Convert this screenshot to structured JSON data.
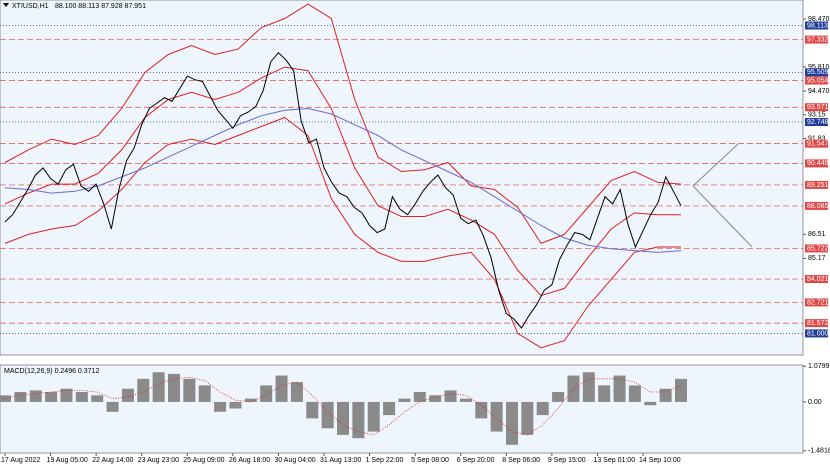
{
  "chart_data": {
    "type": "line",
    "title": "XTIUSD,H1",
    "quote": "88.100 88.113 87.928 87.951",
    "categories": [
      "17 Aug 2022",
      null,
      null,
      null,
      null,
      null,
      "19 Aug 05:00",
      null,
      null,
      null,
      null,
      null,
      "22 Aug 14:00",
      null,
      null,
      null,
      null,
      null,
      "23 Aug 23:00",
      null,
      null,
      null,
      null,
      null,
      "25 Aug 09:00",
      null,
      null,
      null,
      null,
      null,
      "26 Aug 18:00",
      null,
      null,
      null,
      null,
      null,
      "30 Aug 04:00",
      null,
      null,
      null,
      null,
      null,
      "31 Aug 13:00",
      null,
      null,
      null,
      null,
      null,
      "1 Sep 22:00",
      null,
      null,
      null,
      null,
      null,
      "5 Sep 08:00",
      null,
      null,
      null,
      null,
      null,
      "6 Sep 20:00",
      null,
      null,
      null,
      null,
      null,
      "8 Sep 06:00",
      null,
      null,
      null,
      null,
      null,
      "9 Sep 15:00",
      null,
      null,
      null,
      null,
      null,
      "13 Sep 01:00",
      null,
      null,
      null,
      null,
      null,
      "14 Sep 10:00",
      null,
      null,
      null,
      null,
      null
    ],
    "series": [
      {
        "name": "XTIUSD",
        "color": "#000000",
        "values": [
          87.2,
          87.6,
          88.3,
          89.0,
          89.8,
          90.2,
          89.6,
          89.3,
          90.1,
          90.4,
          89.2,
          88.9,
          89.3,
          88.2,
          86.8,
          89.0,
          90.6,
          91.3,
          92.6,
          93.5,
          93.8,
          94.1,
          93.9,
          94.6,
          95.3,
          95.1,
          95.0,
          94.2,
          93.4,
          92.9,
          92.4,
          93.1,
          93.3,
          93.6,
          94.5,
          96.1,
          96.6,
          96.2,
          95.6,
          92.8,
          91.6,
          91.8,
          90.2,
          89.4,
          88.8,
          88.6,
          88.0,
          87.7,
          87.0,
          86.6,
          86.8,
          88.6,
          87.9,
          87.6,
          88.2,
          88.9,
          89.4,
          89.8,
          89.1,
          88.7,
          87.4,
          87.1,
          87.3,
          86.4,
          85.2,
          83.4,
          82.1,
          81.8,
          81.3,
          82.0,
          82.6,
          83.4,
          83.7,
          85.1,
          85.9,
          86.6,
          86.5,
          86.2,
          87.4,
          88.6,
          88.2,
          89.0,
          87.1,
          85.8,
          86.7,
          87.6,
          88.3,
          89.7,
          88.9,
          88.1
        ]
      }
    ],
    "bands": [
      {
        "color": "#e02020",
        "values": [
          90.5,
          91.2,
          91.8,
          91.5,
          92.0,
          93.5,
          95.5,
          96.5,
          97.0,
          96.5,
          96.8,
          98.0,
          98.5,
          99.3,
          98.5,
          94.0,
          90.8,
          90.0,
          90.1,
          90.5,
          89.2,
          89.0,
          88.0,
          86.0,
          86.5,
          88.0,
          89.5,
          90.0,
          89.4,
          89.3
        ]
      },
      {
        "color": "#e02020",
        "values": [
          88.2,
          88.8,
          89.3,
          89.3,
          89.9,
          91.2,
          93.0,
          94.0,
          94.4,
          94.0,
          94.4,
          95.2,
          95.8,
          95.6,
          93.5,
          90.2,
          88.1,
          87.5,
          87.5,
          87.9,
          87.3,
          86.5,
          84.5,
          83.1,
          83.5,
          85.2,
          86.8,
          87.7,
          87.6,
          87.6
        ]
      },
      {
        "color": "#e02020",
        "values": [
          86.0,
          86.5,
          86.8,
          87.0,
          87.8,
          89.0,
          90.5,
          91.5,
          91.8,
          91.5,
          92.0,
          92.5,
          93.0,
          92.0,
          88.5,
          86.5,
          85.5,
          85.0,
          85.0,
          85.3,
          85.5,
          84.0,
          81.0,
          80.2,
          80.6,
          82.5,
          84.0,
          85.5,
          85.8,
          85.8
        ]
      },
      {
        "color": "#6a6ad0",
        "values": [
          89.1,
          89.0,
          88.8,
          88.9,
          89.2,
          89.7,
          90.2,
          90.8,
          91.4,
          92.0,
          92.6,
          93.1,
          93.4,
          93.5,
          93.2,
          92.6,
          92.0,
          91.2,
          90.6,
          90.0,
          89.4,
          88.6,
          87.8,
          87.0,
          86.3,
          85.9,
          85.7,
          85.6,
          85.5,
          85.6
        ]
      }
    ],
    "ylim": [
      79.8,
      99.53
    ],
    "yticks": [
      {
        "value": 98.47,
        "label": "98.470"
      },
      {
        "value": 95.81,
        "label": "95.810"
      },
      {
        "value": 94.47,
        "label": "94.470"
      },
      93.15,
      91.83,
      86.51,
      85.17
    ],
    "levels": [
      {
        "value": 98.113,
        "color": "#1f3d99"
      },
      {
        "value": 97.332,
        "color": "#e04848"
      },
      {
        "value": 95.509,
        "color": "#1f3d99"
      },
      {
        "value": 95.054,
        "color": "#e04848"
      },
      {
        "value": 93.571,
        "color": "#e04848"
      },
      {
        "value": 92.748,
        "color": "#1f3d99"
      },
      {
        "value": 91.547,
        "color": "#e04848"
      },
      {
        "value": 90.449,
        "color": "#e04848"
      },
      {
        "value": 89.251,
        "color": "#e04848"
      },
      {
        "value": 88.085,
        "color": "#e04848"
      },
      {
        "value": 85.722,
        "color": "#e04848"
      },
      {
        "value": 84.021,
        "color": "#e04848"
      },
      {
        "value": 82.721,
        "color": "#e04848"
      },
      {
        "value": 81.572,
        "color": "#e04848"
      },
      {
        "value": 81,
        "label": "81.000",
        "color": "#1f3d99"
      }
    ],
    "macd": {
      "title": "MACD(12,26,9) 0.2496 0.3712",
      "histogram": {
        "color": "#8a8a8a",
        "values": [
          0.2,
          0.3,
          0.35,
          0.3,
          0.4,
          0.3,
          0.2,
          -0.3,
          0.4,
          0.7,
          0.9,
          0.85,
          0.7,
          0.5,
          -0.3,
          -0.2,
          0.1,
          0.5,
          0.8,
          0.6,
          -0.5,
          -0.8,
          -1.0,
          -1.1,
          -0.9,
          -0.4,
          0.1,
          0.3,
          0.2,
          0.35,
          0.1,
          -0.5,
          -0.9,
          -1.3,
          -1.0,
          -0.4,
          0.3,
          0.8,
          0.9,
          0.5,
          0.8,
          0.5,
          -0.1,
          0.4,
          0.7
        ]
      },
      "signal": {
        "color": "#e02020",
        "values": [
          0.1,
          0.2,
          0.25,
          0.3,
          0.35,
          0.35,
          0.3,
          0.1,
          0.15,
          0.3,
          0.55,
          0.7,
          0.75,
          0.65,
          0.3,
          0.05,
          0.0,
          0.2,
          0.5,
          0.6,
          0.2,
          -0.3,
          -0.7,
          -0.9,
          -1.0,
          -0.7,
          -0.3,
          0.0,
          0.15,
          0.25,
          0.2,
          -0.1,
          -0.5,
          -0.9,
          -1.0,
          -0.7,
          -0.2,
          0.4,
          0.7,
          0.7,
          0.7,
          0.6,
          0.3,
          0.3,
          0.5
        ]
      },
      "ylim": [
        -1.55,
        1.12
      ],
      "yticks": [
        {
          "value": 1.0799,
          "label": "1.0799"
        },
        {
          "value": 0,
          "label": "0.00"
        },
        {
          "value": -1.4818,
          "label": "-1.4818"
        }
      ]
    }
  }
}
